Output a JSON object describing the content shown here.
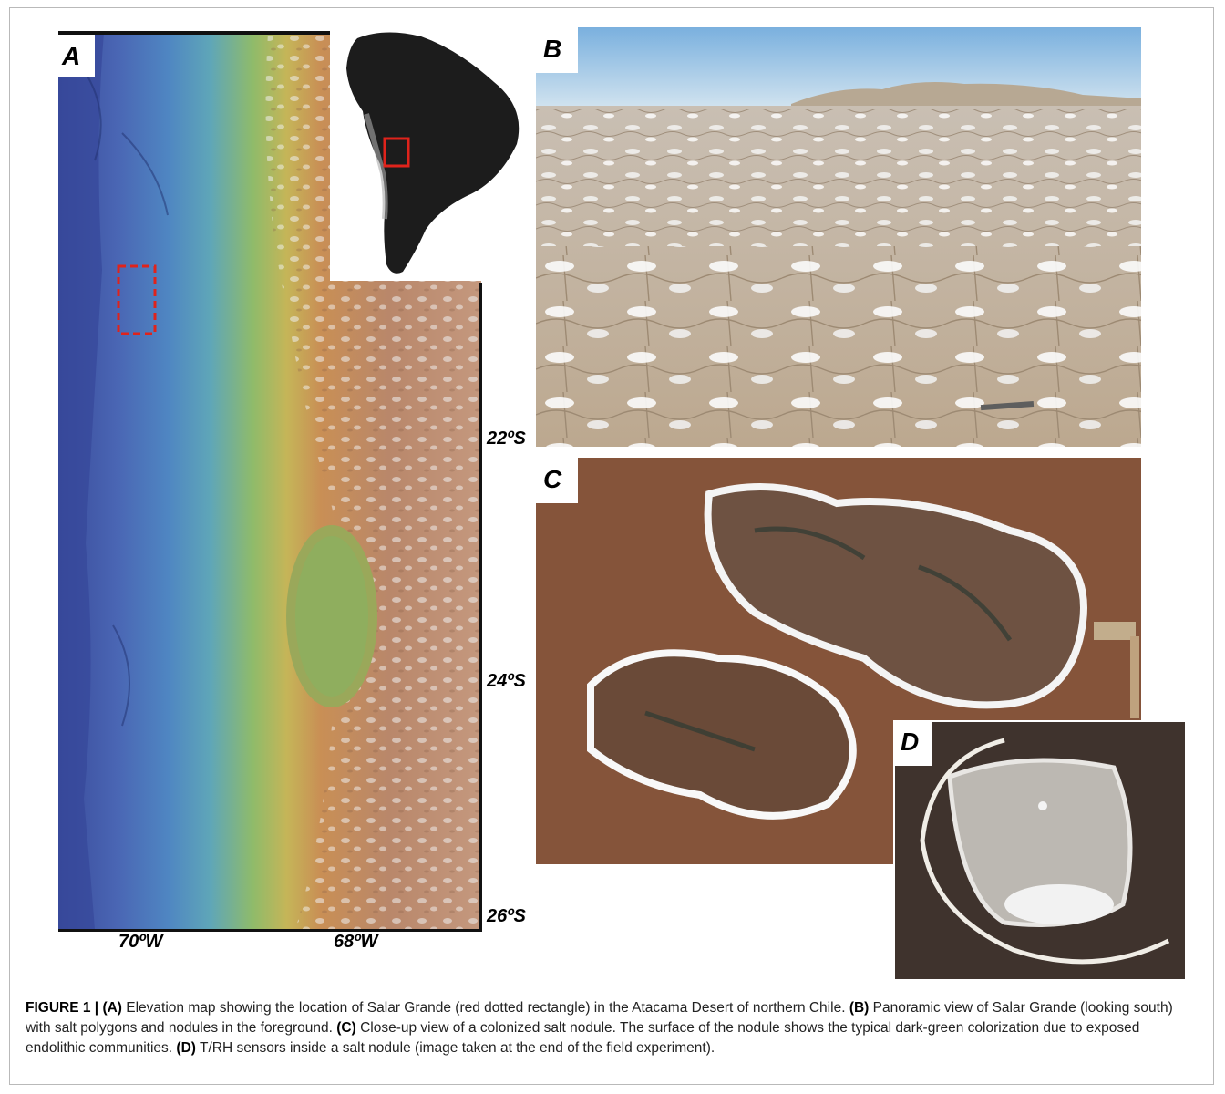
{
  "figure": {
    "panel_labels": {
      "a": "A",
      "b": "B",
      "c": "C",
      "d": "D"
    },
    "map_axis": {
      "lat_ticks": [
        "22ºS",
        "24ºS",
        "26ºS"
      ],
      "lon_ticks": [
        "70ºW",
        "68ºW"
      ]
    },
    "colors": {
      "highlight": "#e0231b",
      "ocean_deep": "#3b4fa0",
      "lowland_green": "#8fb35a",
      "highland_brown": "#b7855a"
    }
  },
  "caption": {
    "lead": "FIGURE 1 | ",
    "a_label": "(A)",
    "a_text": " Elevation map showing the location of Salar Grande (red dotted rectangle) in the Atacama Desert of northern Chile. ",
    "b_label": "(B)",
    "b_text": " Panoramic view of Salar Grande (looking south) with salt polygons and nodules in the foreground. ",
    "c_label": "(C)",
    "c_text": " Close-up view of a colonized salt nodule. The surface of the nodule shows the typical dark-green colorization due to exposed endolithic communities. ",
    "d_label": "(D)",
    "d_text": " T/RH sensors inside a salt nodule (image taken at the end of the field experiment)."
  }
}
